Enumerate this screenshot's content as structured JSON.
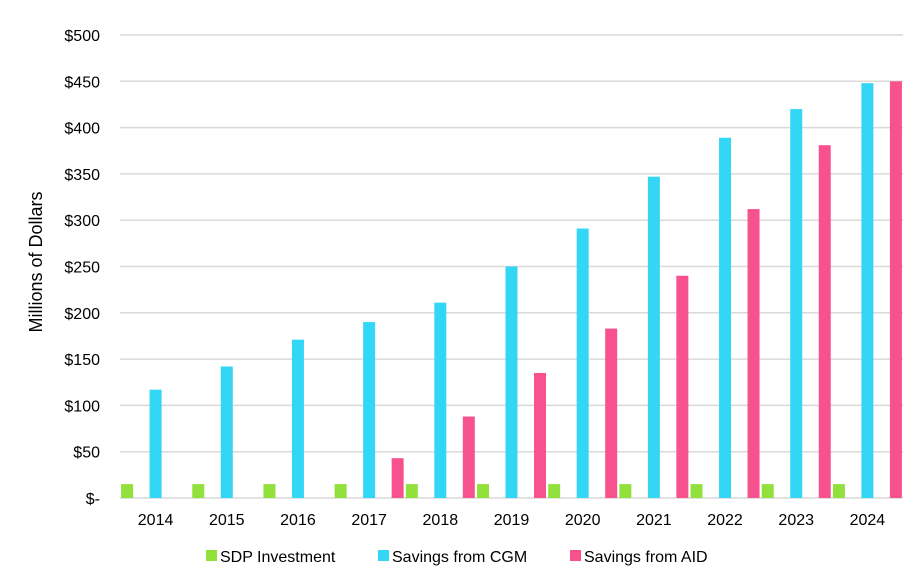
{
  "chart_data": {
    "type": "bar",
    "title": "",
    "xlabel": "",
    "ylabel": "Millions of Dollars",
    "categories": [
      "2014",
      "2015",
      "2016",
      "2017",
      "2018",
      "2019",
      "2020",
      "2021",
      "2022",
      "2023",
      "2024"
    ],
    "series": [
      {
        "name": "SDP Investment",
        "color": "#92e03c",
        "values": [
          15,
          15,
          15,
          15,
          15,
          15,
          15,
          15,
          15,
          15,
          15
        ]
      },
      {
        "name": "Savings from CGM",
        "color": "#33d6f5",
        "values": [
          117,
          142,
          171,
          190,
          211,
          250,
          291,
          347,
          389,
          420,
          448
        ]
      },
      {
        "name": "Savings from AID",
        "color": "#f7528e",
        "values": [
          0,
          0,
          0,
          43,
          88,
          135,
          183,
          240,
          312,
          381,
          450
        ]
      }
    ],
    "ylim": [
      0,
      500
    ],
    "y_ticks": [
      {
        "value": 0,
        "label": "$-"
      },
      {
        "value": 50,
        "label": "$50"
      },
      {
        "value": 100,
        "label": "$100"
      },
      {
        "value": 150,
        "label": "$150"
      },
      {
        "value": 200,
        "label": "$200"
      },
      {
        "value": 250,
        "label": "$250"
      },
      {
        "value": 300,
        "label": "$300"
      },
      {
        "value": 350,
        "label": "$350"
      },
      {
        "value": 400,
        "label": "$400"
      },
      {
        "value": 450,
        "label": "$450"
      },
      {
        "value": 500,
        "label": "$500"
      }
    ],
    "grid": true,
    "gridline_color": "#d9d9d9",
    "legend_position": "bottom"
  }
}
